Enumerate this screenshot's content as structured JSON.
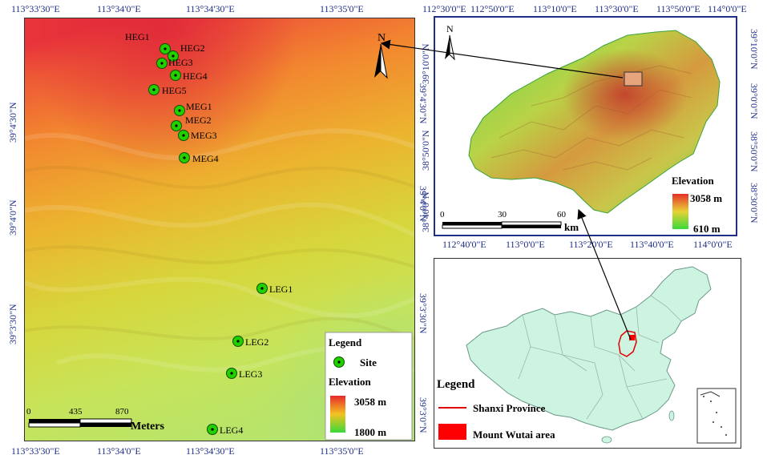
{
  "main_map": {
    "top_coords": [
      "113°33'30\"E",
      "113°34'0\"E",
      "113°34'30\"E",
      "113°35'0\"E"
    ],
    "bottom_coords": [
      "113°33'30\"E",
      "113°34'0\"E",
      "113°34'30\"E",
      "113°35'0\"E"
    ],
    "left_coords": [
      "39°4'30\"N",
      "39°4'0\"N",
      "39°3'30\"N"
    ],
    "right_coords": [
      "39°4'30\"N",
      "39°4'0\"N",
      "39°3'30\"N",
      "39°3'0\"N"
    ],
    "north_label": "N",
    "sites": [
      {
        "name": "HEG1"
      },
      {
        "name": "HEG2"
      },
      {
        "name": "HEG3"
      },
      {
        "name": "HEG4"
      },
      {
        "name": "HEG5"
      },
      {
        "name": "MEG1"
      },
      {
        "name": "MEG2"
      },
      {
        "name": "MEG3"
      },
      {
        "name": "MEG4"
      },
      {
        "name": "LEG1"
      },
      {
        "name": "LEG2"
      },
      {
        "name": "LEG3"
      },
      {
        "name": "LEG4"
      }
    ],
    "legend": {
      "title": "Legend",
      "site_label": "Site",
      "elevation_label": "Elevation",
      "elevation_max": "3058 m",
      "elevation_min": "1800 m"
    },
    "scale": {
      "ticks": [
        "0",
        "435",
        "870"
      ],
      "unit": "Meters"
    }
  },
  "inset_region": {
    "top_coords": [
      "112°30'0\"E",
      "112°50'0\"E",
      "113°10'0\"E",
      "113°30'0\"E",
      "113°50'0\"E",
      "114°0'0\"E"
    ],
    "bottom_coords": [
      "112°40'0\"E",
      "113°0'0\"E",
      "113°20'0\"E",
      "113°40'0\"E",
      "114°0'0\"E"
    ],
    "left_coords": [
      "39°10'0\"N",
      "38°50'0\"N",
      "38°40'0\"N"
    ],
    "right_coords": [
      "39°10'0\"N",
      "39°0'0\"N",
      "38°50'0\"N",
      "38°30'0\"N",
      "38°40'0\"N"
    ],
    "north_label": "N",
    "legend": {
      "title": "Elevation",
      "max": "3058 m",
      "min": "610 m"
    },
    "scale": {
      "ticks": [
        "0",
        "30",
        "60"
      ],
      "unit": "km"
    }
  },
  "inset_china": {
    "legend": {
      "title": "Legend",
      "province": "Shanxi Province",
      "area": "Mount Wutai area"
    }
  },
  "colors": {
    "coord_text": "#1f2f88",
    "frame": "#1f2f88",
    "province_line": "#e00000",
    "area_fill": "#ff0000",
    "site_fill": "#22d000"
  }
}
